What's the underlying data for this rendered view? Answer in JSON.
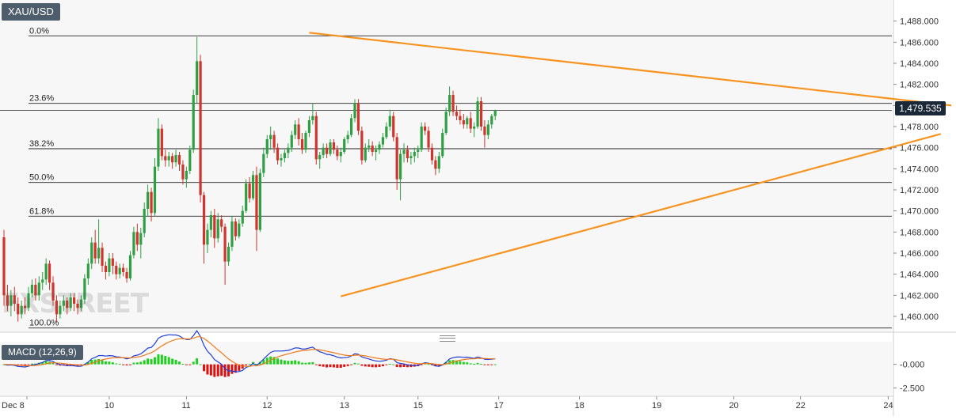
{
  "symbol": "XAU/USD",
  "current_price_label": "1,479.535",
  "watermark_text": "FXSTREET",
  "macd_label": "MACD (12,26,9)",
  "colors": {
    "up": "#2ea043",
    "down": "#d0342c",
    "trendline": "#f7931e",
    "macd_line": "#1f3fd6",
    "signal_line": "#f07a1a",
    "hist_up": "#20d020",
    "hist_down": "#e01010",
    "grid_bg": "#f7f7f7"
  },
  "chart_data": [
    {
      "type": "candlestick",
      "title": "XAU/USD",
      "ylim": [
        1458.5,
        1490.0
      ],
      "y_ticks": [
        "1,460.000",
        "1,462.000",
        "1,464.000",
        "1,466.000",
        "1,468.000",
        "1,470.000",
        "1,472.000",
        "1,474.000",
        "1,476.000",
        "1,478.000",
        "1,480.000",
        "1,482.000",
        "1,484.000",
        "1,486.000",
        "1,488.000"
      ],
      "x_tick_labels": [
        "Dec 8",
        "10",
        "11",
        "12",
        "13",
        "15",
        "17",
        "18",
        "19",
        "20",
        "22",
        "24"
      ],
      "fibonacci": [
        {
          "label": "0.0%",
          "value": 1486.6
        },
        {
          "label": "23.6%",
          "value": 1480.2
        },
        {
          "label": "38.2%",
          "value": 1475.9
        },
        {
          "label": "50.0%",
          "value": 1472.7
        },
        {
          "label": "61.8%",
          "value": 1469.5
        },
        {
          "label": "100.0%",
          "value": 1458.9
        }
      ],
      "current_price": 1479.535,
      "trendlines": [
        {
          "name": "resistance",
          "start_bar": 87,
          "start": 1486.9,
          "end_bar": 270,
          "end": 1480.0
        },
        {
          "name": "support",
          "start_bar": 96,
          "start": 1461.9,
          "end_bar": 267,
          "end": 1477.3
        }
      ],
      "candles": [
        [
          1467.5,
          1468.2,
          1461.0,
          1462.0
        ],
        [
          1462.0,
          1463.0,
          1460.5,
          1461.0
        ],
        [
          1461.0,
          1462.5,
          1460.0,
          1462.0
        ],
        [
          1462.0,
          1462.8,
          1460.5,
          1461.2
        ],
        [
          1461.2,
          1461.8,
          1459.5,
          1460.2
        ],
        [
          1460.2,
          1461.5,
          1459.8,
          1461.0
        ],
        [
          1461.0,
          1461.8,
          1460.2,
          1460.8
        ],
        [
          1460.8,
          1462.8,
          1460.5,
          1462.2
        ],
        [
          1462.2,
          1463.5,
          1461.8,
          1463.0
        ],
        [
          1463.0,
          1463.6,
          1461.5,
          1462.0
        ],
        [
          1462.0,
          1463.8,
          1461.5,
          1463.2
        ],
        [
          1463.2,
          1464.2,
          1462.5,
          1463.5
        ],
        [
          1463.5,
          1465.5,
          1463.0,
          1465.0
        ],
        [
          1465.0,
          1465.3,
          1462.5,
          1463.2
        ],
        [
          1463.2,
          1463.8,
          1461.0,
          1461.5
        ],
        [
          1461.5,
          1462.0,
          1459.5,
          1460.2
        ],
        [
          1460.2,
          1461.5,
          1459.8,
          1461.0
        ],
        [
          1461.0,
          1462.0,
          1460.5,
          1461.5
        ],
        [
          1461.5,
          1461.8,
          1460.2,
          1460.8
        ],
        [
          1460.8,
          1462.2,
          1460.5,
          1461.8
        ],
        [
          1461.8,
          1462.2,
          1460.5,
          1461.2
        ],
        [
          1461.2,
          1461.6,
          1460.2,
          1460.8
        ],
        [
          1460.8,
          1462.0,
          1460.5,
          1461.6
        ],
        [
          1461.6,
          1464.0,
          1461.2,
          1463.6
        ],
        [
          1463.6,
          1465.5,
          1463.0,
          1465.0
        ],
        [
          1465.0,
          1467.5,
          1464.5,
          1467.0
        ],
        [
          1467.0,
          1468.2,
          1465.0,
          1465.5
        ],
        [
          1465.5,
          1469.2,
          1465.0,
          1466.5
        ],
        [
          1466.5,
          1467.0,
          1464.2,
          1464.8
        ],
        [
          1464.8,
          1465.2,
          1463.5,
          1464.2
        ],
        [
          1464.2,
          1466.0,
          1463.8,
          1465.5
        ],
        [
          1465.5,
          1466.0,
          1464.0,
          1464.8
        ],
        [
          1464.8,
          1465.2,
          1463.5,
          1464.0
        ],
        [
          1464.0,
          1465.0,
          1463.6,
          1464.6
        ],
        [
          1464.6,
          1465.0,
          1463.8,
          1464.2
        ],
        [
          1464.2,
          1464.6,
          1463.2,
          1463.6
        ],
        [
          1463.6,
          1466.2,
          1463.4,
          1465.8
        ],
        [
          1465.8,
          1468.5,
          1465.5,
          1468.0
        ],
        [
          1468.0,
          1468.8,
          1466.2,
          1466.8
        ],
        [
          1466.8,
          1468.4,
          1465.5,
          1467.9
        ],
        [
          1467.9,
          1470.8,
          1467.5,
          1470.2
        ],
        [
          1470.2,
          1472.5,
          1469.5,
          1471.8
        ],
        [
          1471.8,
          1472.2,
          1469.0,
          1469.8
        ],
        [
          1469.8,
          1475.0,
          1469.5,
          1474.2
        ],
        [
          1474.2,
          1478.8,
          1473.8,
          1477.8
        ],
        [
          1477.8,
          1478.2,
          1474.8,
          1475.2
        ],
        [
          1475.2,
          1475.8,
          1474.2,
          1474.8
        ],
        [
          1474.8,
          1475.6,
          1474.2,
          1475.2
        ],
        [
          1475.2,
          1475.5,
          1474.0,
          1474.6
        ],
        [
          1474.6,
          1475.8,
          1474.2,
          1475.3
        ],
        [
          1475.3,
          1475.6,
          1473.8,
          1474.4
        ],
        [
          1474.4,
          1474.8,
          1472.5,
          1473.0
        ],
        [
          1473.0,
          1474.2,
          1472.2,
          1473.8
        ],
        [
          1473.8,
          1476.2,
          1473.5,
          1475.8
        ],
        [
          1475.8,
          1481.5,
          1475.5,
          1481.0
        ],
        [
          1481.0,
          1486.5,
          1480.2,
          1484.2
        ],
        [
          1484.2,
          1484.8,
          1470.8,
          1471.5
        ],
        [
          1471.5,
          1471.8,
          1465.0,
          1466.8
        ],
        [
          1466.8,
          1468.8,
          1466.0,
          1468.2
        ],
        [
          1468.2,
          1470.0,
          1467.5,
          1469.6
        ],
        [
          1469.6,
          1470.2,
          1466.5,
          1467.4
        ],
        [
          1467.4,
          1469.8,
          1467.0,
          1469.2
        ],
        [
          1469.2,
          1469.6,
          1468.0,
          1468.5
        ],
        [
          1468.5,
          1468.8,
          1463.0,
          1465.2
        ],
        [
          1465.2,
          1467.0,
          1464.8,
          1466.6
        ],
        [
          1466.6,
          1469.5,
          1466.2,
          1469.0
        ],
        [
          1469.0,
          1469.3,
          1467.2,
          1467.6
        ],
        [
          1467.6,
          1469.2,
          1467.4,
          1468.8
        ],
        [
          1468.8,
          1470.5,
          1468.5,
          1470.0
        ],
        [
          1470.0,
          1473.0,
          1469.8,
          1472.6
        ],
        [
          1472.6,
          1473.2,
          1470.8,
          1471.2
        ],
        [
          1471.2,
          1473.8,
          1471.0,
          1473.4
        ],
        [
          1473.4,
          1474.2,
          1466.2,
          1468.2
        ],
        [
          1468.2,
          1474.0,
          1468.0,
          1473.6
        ],
        [
          1473.6,
          1476.0,
          1473.2,
          1475.4
        ],
        [
          1475.4,
          1477.2,
          1475.0,
          1476.8
        ],
        [
          1476.8,
          1478.0,
          1475.8,
          1477.2
        ],
        [
          1477.2,
          1477.6,
          1475.5,
          1476.0
        ],
        [
          1476.0,
          1476.4,
          1474.4,
          1474.8
        ],
        [
          1474.8,
          1475.4,
          1474.2,
          1475.0
        ],
        [
          1475.0,
          1475.8,
          1474.6,
          1475.5
        ],
        [
          1475.5,
          1476.4,
          1475.0,
          1476.0
        ],
        [
          1476.0,
          1477.6,
          1475.6,
          1477.2
        ],
        [
          1477.2,
          1478.6,
          1476.8,
          1478.2
        ],
        [
          1478.2,
          1478.8,
          1476.2,
          1476.8
        ],
        [
          1476.8,
          1477.4,
          1475.4,
          1475.8
        ],
        [
          1475.8,
          1477.6,
          1475.5,
          1477.4
        ],
        [
          1477.4,
          1479.0,
          1477.0,
          1478.6
        ],
        [
          1478.6,
          1480.2,
          1478.2,
          1479.0
        ],
        [
          1479.0,
          1479.4,
          1474.4,
          1474.9
        ],
        [
          1474.9,
          1475.6,
          1474.0,
          1475.3
        ],
        [
          1475.3,
          1476.4,
          1475.0,
          1476.0
        ],
        [
          1476.0,
          1476.4,
          1475.0,
          1475.4
        ],
        [
          1475.4,
          1476.8,
          1475.2,
          1476.5
        ],
        [
          1476.5,
          1476.8,
          1475.4,
          1475.8
        ],
        [
          1475.8,
          1476.2,
          1474.8,
          1475.2
        ],
        [
          1475.2,
          1476.0,
          1474.6,
          1475.6
        ],
        [
          1475.6,
          1477.0,
          1475.4,
          1476.8
        ],
        [
          1476.8,
          1477.6,
          1476.4,
          1477.2
        ],
        [
          1477.2,
          1479.2,
          1477.0,
          1478.8
        ],
        [
          1478.8,
          1480.6,
          1478.4,
          1480.2
        ],
        [
          1480.2,
          1480.6,
          1477.2,
          1477.6
        ],
        [
          1477.6,
          1478.0,
          1474.4,
          1474.8
        ],
        [
          1474.8,
          1476.4,
          1474.6,
          1476.0
        ],
        [
          1476.0,
          1476.8,
          1475.6,
          1476.2
        ],
        [
          1476.2,
          1476.6,
          1475.2,
          1475.6
        ],
        [
          1475.6,
          1476.2,
          1474.8,
          1475.8
        ],
        [
          1475.8,
          1476.6,
          1475.4,
          1476.3
        ],
        [
          1476.3,
          1477.4,
          1476.0,
          1477.0
        ],
        [
          1477.0,
          1478.4,
          1476.8,
          1478.0
        ],
        [
          1478.0,
          1479.6,
          1477.6,
          1479.0
        ],
        [
          1479.0,
          1479.4,
          1476.6,
          1477.0
        ],
        [
          1477.0,
          1477.4,
          1472.0,
          1473.0
        ],
        [
          1473.0,
          1475.8,
          1471.0,
          1475.4
        ],
        [
          1475.4,
          1476.4,
          1474.6,
          1475.8
        ],
        [
          1475.8,
          1476.2,
          1474.6,
          1475.0
        ],
        [
          1475.0,
          1475.6,
          1474.4,
          1475.2
        ],
        [
          1475.2,
          1476.0,
          1474.6,
          1475.6
        ],
        [
          1475.6,
          1476.2,
          1475.0,
          1475.8
        ],
        [
          1475.8,
          1478.4,
          1475.6,
          1478.0
        ],
        [
          1478.0,
          1478.4,
          1477.2,
          1477.6
        ],
        [
          1477.6,
          1478.0,
          1475.6,
          1476.0
        ],
        [
          1476.0,
          1476.4,
          1474.4,
          1474.8
        ],
        [
          1474.8,
          1475.2,
          1473.4,
          1474.0
        ],
        [
          1474.0,
          1475.6,
          1473.6,
          1475.2
        ],
        [
          1475.2,
          1477.8,
          1475.0,
          1477.4
        ],
        [
          1477.4,
          1479.8,
          1477.2,
          1479.4
        ],
        [
          1479.4,
          1481.8,
          1479.0,
          1481.0
        ],
        [
          1481.0,
          1481.4,
          1479.0,
          1479.4
        ],
        [
          1479.4,
          1480.0,
          1478.6,
          1479.0
        ],
        [
          1479.0,
          1479.6,
          1478.2,
          1478.6
        ],
        [
          1478.6,
          1479.2,
          1477.8,
          1478.2
        ],
        [
          1478.2,
          1479.0,
          1477.8,
          1478.8
        ],
        [
          1478.8,
          1479.4,
          1477.4,
          1477.8
        ],
        [
          1477.8,
          1478.4,
          1477.0,
          1478.0
        ],
        [
          1478.0,
          1480.8,
          1477.8,
          1480.4
        ],
        [
          1480.4,
          1480.8,
          1477.6,
          1478.0
        ],
        [
          1478.0,
          1478.6,
          1476.0,
          1477.2
        ],
        [
          1477.2,
          1478.6,
          1476.8,
          1478.2
        ],
        [
          1478.2,
          1479.2,
          1477.8,
          1479.0
        ],
        [
          1479.0,
          1479.6,
          1478.6,
          1479.535
        ]
      ],
      "macd": {
        "zero_label": "0.000",
        "tick_label": "-2.500",
        "ylim": [
          -3.3,
          2.4
        ]
      }
    }
  ]
}
